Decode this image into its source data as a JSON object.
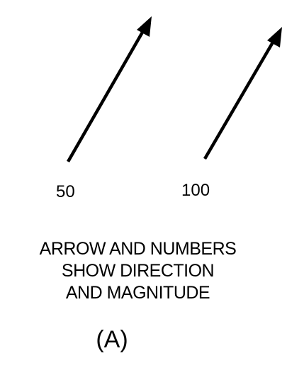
{
  "vectors": [
    {
      "magnitude_label": "50"
    },
    {
      "magnitude_label": "100"
    }
  ],
  "caption": {
    "line1": "ARROW AND NUMBERS",
    "line2": "SHOW DIRECTION",
    "line3": "AND MAGNITUDE"
  },
  "figure_label": "(A)",
  "colors": {
    "ink": "#000000",
    "background": "#ffffff"
  }
}
